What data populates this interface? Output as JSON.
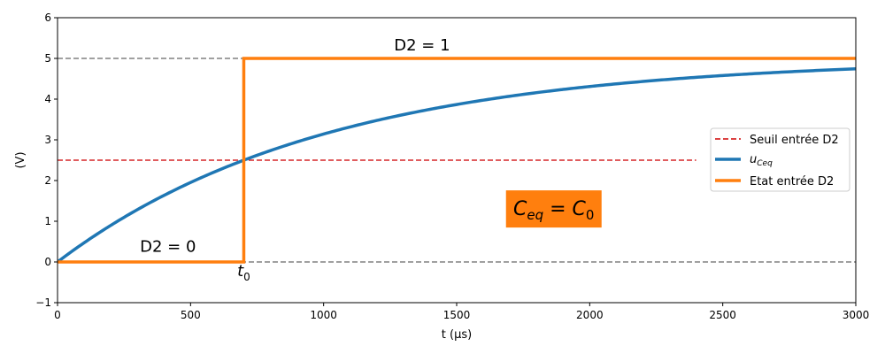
{
  "chart_data": {
    "type": "line",
    "xlabel": "t (µs)",
    "ylabel": "(V)",
    "xlim": [
      0,
      3000
    ],
    "ylim": [
      -1,
      6
    ],
    "xticks": [
      0,
      500,
      1000,
      1500,
      2000,
      2500,
      3000
    ],
    "yticks": [
      -1,
      0,
      1,
      2,
      3,
      4,
      5,
      6
    ],
    "grid": false,
    "legend_position": "center-right",
    "reference_lines": [
      {
        "y": 5,
        "x": [
          0,
          3000
        ],
        "style": "dashed",
        "color": "#808080"
      },
      {
        "y": 0,
        "x": [
          0,
          3000
        ],
        "style": "dashed",
        "color": "#808080"
      }
    ],
    "series": [
      {
        "name": "Seuil entrée D2",
        "style": "dashed",
        "color": "#d62728",
        "x": [
          0,
          2400
        ],
        "y": [
          2.5,
          2.5
        ]
      },
      {
        "name": "u_Ceq",
        "legend_main": "u",
        "legend_sub": "Ceq",
        "style": "solid",
        "color": "#1f77b4",
        "function": "5*(1-exp(-t/tau))",
        "tau": 1010,
        "x": [
          0,
          250,
          500,
          750,
          1000,
          1250,
          1500,
          1750,
          2000,
          2250,
          2500,
          2750,
          3000
        ],
        "y": [
          0,
          1.1,
          1.95,
          2.62,
          3.14,
          3.55,
          3.87,
          4.12,
          4.31,
          4.47,
          4.59,
          4.68,
          4.75
        ]
      },
      {
        "name": "Etat entrée D2",
        "style": "solid",
        "color": "#ff7f0e",
        "x": [
          0,
          700,
          700,
          3000
        ],
        "y": [
          0,
          0,
          5,
          5
        ]
      }
    ],
    "annotations": [
      {
        "text": "D2 = 1",
        "x": 1370,
        "y": 5.2
      },
      {
        "text": "D2 = 0",
        "x": 415,
        "y": 0.25
      },
      {
        "text_main": "t",
        "text_sub": "0",
        "x": 700,
        "y": -0.35
      },
      {
        "text_main": "C",
        "sub1": "eq",
        "eq": " = ",
        "text_main2": "C",
        "sub2": "0",
        "x": 1865,
        "y": 1.15,
        "box_color": "#ff7f0e"
      }
    ]
  }
}
